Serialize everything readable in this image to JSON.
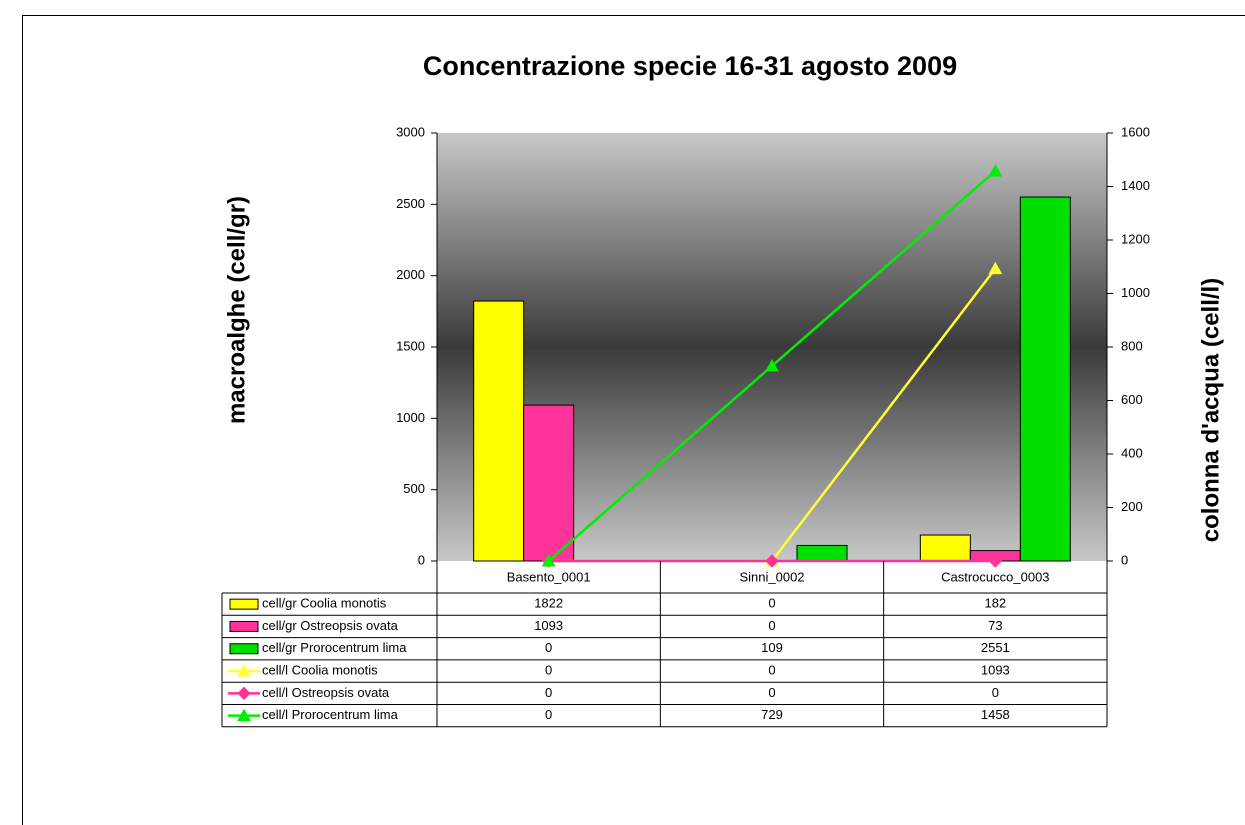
{
  "chart_data": {
    "type": "bar_line_table",
    "title": "Concentrazione specie 16-31 agosto 2009",
    "ylabel": "macroalghe (cell/gr)",
    "y2label": "colonna d'acqua (cell/l)",
    "categories": [
      "Basento_0001",
      "Sinni_0002",
      "Castrocucco_0003"
    ],
    "series": [
      {
        "name": "cell/gr Coolia monotis",
        "kind": "bar",
        "color": "#ffff00",
        "values": [
          1822,
          0,
          182
        ]
      },
      {
        "name": "cell/gr Ostreopsis ovata",
        "kind": "bar",
        "color": "#ff3399",
        "values": [
          1093,
          0,
          73
        ]
      },
      {
        "name": "cell/gr Prorocentrum lima",
        "kind": "bar",
        "color": "#00e000",
        "values": [
          0,
          109,
          2551
        ]
      },
      {
        "name": "cell/l Coolia monotis",
        "kind": "line",
        "axis": "y2",
        "marker": "triangle",
        "color": "#ffff33",
        "values": [
          0,
          0,
          1093
        ]
      },
      {
        "name": "cell/l Ostreopsis ovata",
        "kind": "line",
        "axis": "y2",
        "marker": "diamond",
        "color": "#ff3399",
        "values": [
          0,
          0,
          0
        ]
      },
      {
        "name": "cell/l Prorocentrum lima",
        "kind": "line",
        "axis": "y2",
        "marker": "triangle",
        "color": "#00ee00",
        "values": [
          0,
          729,
          1458
        ]
      }
    ],
    "ylim": [
      0,
      3000
    ],
    "yticks": [
      0,
      500,
      1000,
      1500,
      2000,
      2500,
      3000
    ],
    "y2lim": [
      0,
      1600
    ],
    "y2ticks": [
      0,
      200,
      400,
      600,
      800,
      1000,
      1200,
      1400,
      1600
    ]
  }
}
